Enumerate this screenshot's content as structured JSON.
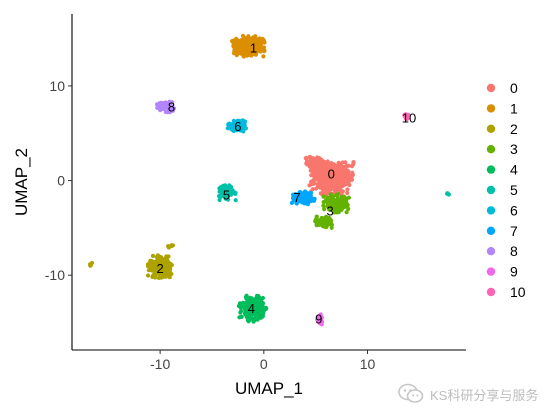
{
  "chart_data": {
    "type": "scatter",
    "xlabel": "UMAP_1",
    "ylabel": "UMAP_2",
    "xlim": [
      -18.5,
      19.5
    ],
    "ylim": [
      -17.9,
      17.6
    ],
    "xticks": [
      -10,
      0,
      10
    ],
    "yticks": [
      -10,
      0,
      10
    ],
    "grid": false,
    "legend_position": "right",
    "legend": [
      "0",
      "1",
      "2",
      "3",
      "4",
      "5",
      "6",
      "7",
      "8",
      "9",
      "10"
    ],
    "colors": [
      "#F8766D",
      "#DB8E00",
      "#AEA200",
      "#64B200",
      "#00BD5C",
      "#00C1A7",
      "#00BADE",
      "#00A6FF",
      "#B385FF",
      "#EF67EB",
      "#FF63B6"
    ],
    "clusters": [
      {
        "name": "0",
        "label_at": [
          6.5,
          0.7
        ],
        "blobs": [
          [
            6.6,
            0.3,
            2.2,
            1.8,
            520
          ],
          [
            4.9,
            1.6,
            0.9,
            0.9,
            90
          ]
        ]
      },
      {
        "name": "1",
        "label_at": [
          -1.0,
          14.0
        ],
        "blobs": [
          [
            -1.5,
            14.2,
            1.6,
            1.1,
            360
          ]
        ]
      },
      {
        "name": "2",
        "label_at": [
          -10.0,
          -9.3
        ],
        "blobs": [
          [
            -10.0,
            -9.1,
            1.2,
            1.2,
            230
          ],
          [
            -16.7,
            -8.9,
            0.25,
            0.2,
            5
          ],
          [
            -9.0,
            -6.9,
            0.3,
            0.2,
            5
          ]
        ]
      },
      {
        "name": "3",
        "label_at": [
          6.4,
          -3.2
        ],
        "blobs": [
          [
            7.0,
            -2.4,
            1.3,
            1.0,
            150
          ],
          [
            5.8,
            -4.4,
            0.9,
            0.6,
            110
          ]
        ]
      },
      {
        "name": "4",
        "label_at": [
          -1.2,
          -13.5
        ],
        "blobs": [
          [
            -1.1,
            -13.5,
            1.4,
            1.4,
            230
          ]
        ]
      },
      {
        "name": "5",
        "label_at": [
          -3.6,
          -1.5
        ],
        "blobs": [
          [
            -3.6,
            -1.2,
            0.9,
            0.9,
            80
          ],
          [
            17.8,
            -1.4,
            0.15,
            0.15,
            3
          ]
        ]
      },
      {
        "name": "6",
        "label_at": [
          -2.5,
          5.7
        ],
        "blobs": [
          [
            -2.5,
            5.8,
            1.0,
            0.7,
            140
          ]
        ]
      },
      {
        "name": "7",
        "label_at": [
          3.2,
          -1.8
        ],
        "blobs": [
          [
            3.7,
            -1.8,
            1.2,
            0.7,
            120
          ]
        ]
      },
      {
        "name": "8",
        "label_at": [
          -8.9,
          7.8
        ],
        "blobs": [
          [
            -9.5,
            7.8,
            0.9,
            0.6,
            80
          ]
        ]
      },
      {
        "name": "9",
        "label_at": [
          5.3,
          -14.6
        ],
        "blobs": [
          [
            5.4,
            -14.6,
            0.3,
            0.6,
            25
          ]
        ]
      },
      {
        "name": "10",
        "label_at": [
          14.0,
          6.6
        ],
        "blobs": [
          [
            13.7,
            6.8,
            0.3,
            0.3,
            10
          ]
        ]
      }
    ]
  },
  "watermark": {
    "text": "KS科研分享与服务",
    "icon": "wechat-icon"
  }
}
